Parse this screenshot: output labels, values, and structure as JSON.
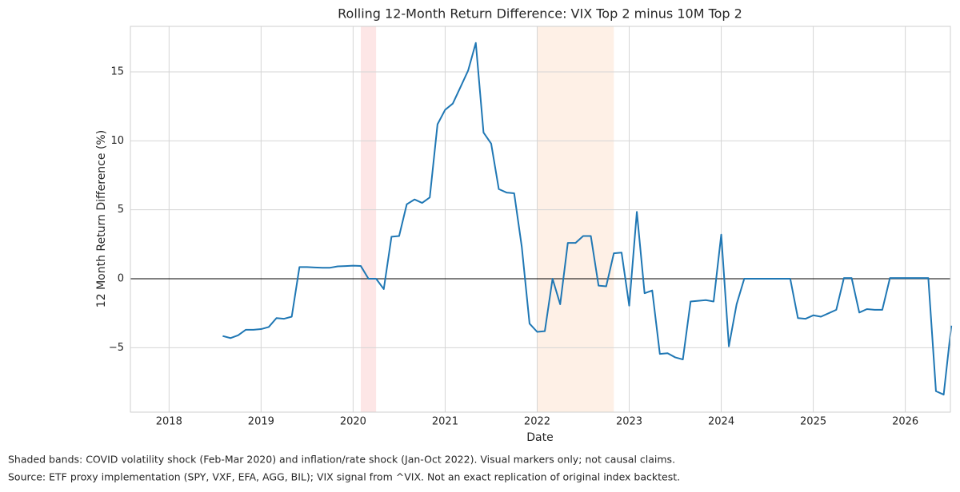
{
  "chart_data": {
    "type": "line",
    "title": "Rolling 12-Month Return Difference: VIX Top 2 minus 10M Top 2",
    "xlabel": "Date",
    "ylabel": "12 Month Return Difference (%)",
    "color": "#1f77b4",
    "grid": true,
    "xlim": [
      2017.58,
      2026.49
    ],
    "xticks": [
      2018,
      2019,
      2020,
      2021,
      2022,
      2023,
      2024,
      2025,
      2026
    ],
    "ylim": [
      -9.67,
      18.3
    ],
    "yticks": [
      {
        "value": -5,
        "label": "−5"
      },
      0,
      5,
      10,
      15
    ],
    "hline": 0,
    "bands": [
      {
        "x0": 2020.083,
        "x1": 2020.25,
        "color": "#fde6e6"
      },
      {
        "x0": 2022.0,
        "x1": 2022.833,
        "color": "#fef0e6"
      }
    ],
    "x": [
      2018.583,
      2018.667,
      2018.75,
      2018.833,
      2018.917,
      2019.0,
      2019.083,
      2019.167,
      2019.25,
      2019.333,
      2019.417,
      2019.5,
      2019.583,
      2019.667,
      2019.75,
      2019.833,
      2019.917,
      2020.0,
      2020.083,
      2020.167,
      2020.25,
      2020.333,
      2020.417,
      2020.5,
      2020.583,
      2020.667,
      2020.75,
      2020.833,
      2020.917,
      2021.0,
      2021.083,
      2021.167,
      2021.25,
      2021.333,
      2021.417,
      2021.5,
      2021.583,
      2021.667,
      2021.75,
      2021.833,
      2021.917,
      2022.0,
      2022.083,
      2022.167,
      2022.25,
      2022.333,
      2022.417,
      2022.5,
      2022.583,
      2022.667,
      2022.75,
      2022.833,
      2022.917,
      2023.0,
      2023.083,
      2023.167,
      2023.25,
      2023.333,
      2023.417,
      2023.5,
      2023.583,
      2023.667,
      2023.75,
      2023.833,
      2023.917,
      2024.0,
      2024.083,
      2024.167,
      2024.25,
      2024.333,
      2024.417,
      2024.5,
      2024.583,
      2024.667,
      2024.75,
      2024.833,
      2024.917,
      2025.0,
      2025.083,
      2025.167,
      2025.25,
      2025.333,
      2025.417,
      2025.5,
      2025.583,
      2025.667,
      2025.75,
      2025.833,
      2025.917,
      2026.0,
      2026.083,
      2026.167,
      2026.25,
      2026.333,
      2026.417,
      2026.5
    ],
    "values": [
      -4.15,
      -4.3,
      -4.1,
      -3.7,
      -3.7,
      -3.65,
      -3.5,
      -2.85,
      -2.9,
      -2.75,
      0.85,
      0.85,
      0.82,
      0.8,
      0.8,
      0.9,
      0.92,
      0.95,
      0.93,
      0.0,
      0.0,
      -0.75,
      3.05,
      3.1,
      5.4,
      5.75,
      5.5,
      5.9,
      11.2,
      12.25,
      12.7,
      13.9,
      15.1,
      17.1,
      10.6,
      9.8,
      6.5,
      6.25,
      6.2,
      2.3,
      -3.25,
      -3.85,
      -3.8,
      0.0,
      -1.85,
      2.6,
      2.6,
      3.1,
      3.1,
      -0.5,
      -0.55,
      1.85,
      1.9,
      -1.95,
      4.85,
      -1.05,
      -0.85,
      -5.45,
      -5.4,
      -5.7,
      -5.85,
      -1.65,
      -1.6,
      -1.55,
      -1.65,
      3.2,
      -4.9,
      -1.85,
      0.0,
      0.0,
      0.0,
      0.0,
      0.0,
      0.0,
      0.0,
      -2.85,
      -2.9,
      -2.65,
      -2.75,
      -2.5,
      -2.25,
      0.05,
      0.05,
      -2.45,
      -2.2,
      -2.25,
      -2.25,
      0.05,
      0.05,
      0.05,
      0.05,
      0.05,
      0.05,
      -8.15,
      -8.4,
      -3.4
    ],
    "notes": [
      "Shaded bands: COVID volatility shock (Feb-Mar 2020) and inflation/rate shock (Jan-Oct 2022). Visual markers only; not causal claims.",
      "Source: ETF proxy implementation (SPY, VXF, EFA, AGG, BIL); VIX signal from ^VIX. Not an exact replication of original index backtest."
    ]
  }
}
